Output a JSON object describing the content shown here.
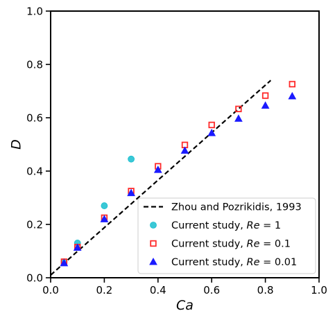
{
  "chart_data": {
    "type": "scatter",
    "xlabel": "Ca",
    "ylabel": "D",
    "xlim": [
      0.0,
      1.0
    ],
    "ylim": [
      0.0,
      1.0
    ],
    "xticks": [
      "0.0",
      "0.2",
      "0.4",
      "0.6",
      "0.8",
      "1.0"
    ],
    "yticks": [
      "0.0",
      "0.2",
      "0.4",
      "0.6",
      "0.8",
      "1.0"
    ],
    "grid": false,
    "legend_position": "lower-right",
    "series": [
      {
        "name": "Zhou and Pozrikidis, 1993",
        "kind": "line",
        "style": "dashed",
        "color": "#000000",
        "x": [
          0.0,
          0.82
        ],
        "y": [
          0.01,
          0.74
        ]
      },
      {
        "name": "Current study, Re = 1",
        "name_prefix": "Current study, ",
        "name_var": "Re",
        "name_value": " = 1",
        "kind": "scatter",
        "marker": "circle",
        "color": "#17BECF",
        "x": [
          0.05,
          0.1,
          0.2,
          0.3
        ],
        "y": [
          0.06,
          0.13,
          0.27,
          0.445
        ]
      },
      {
        "name": "Current study, Re = 0.1",
        "name_prefix": "Current study, ",
        "name_var": "Re",
        "name_value": " = 0.1",
        "kind": "scatter",
        "marker": "square-open",
        "color": "#FF2A2A",
        "x": [
          0.05,
          0.1,
          0.2,
          0.3,
          0.4,
          0.5,
          0.6,
          0.7,
          0.8,
          0.9
        ],
        "y": [
          0.06,
          0.115,
          0.225,
          0.325,
          0.418,
          0.498,
          0.573,
          0.633,
          0.683,
          0.726
        ]
      },
      {
        "name": "Current study, Re = 0.01",
        "name_prefix": "Current study, ",
        "name_var": "Re",
        "name_value": " = 0.01",
        "kind": "scatter",
        "marker": "triangle",
        "color": "#1A1AFF",
        "x": [
          0.05,
          0.1,
          0.2,
          0.3,
          0.4,
          0.5,
          0.6,
          0.7,
          0.8,
          0.9
        ],
        "y": [
          0.055,
          0.113,
          0.22,
          0.318,
          0.405,
          0.477,
          0.543,
          0.597,
          0.646,
          0.681
        ]
      }
    ]
  }
}
